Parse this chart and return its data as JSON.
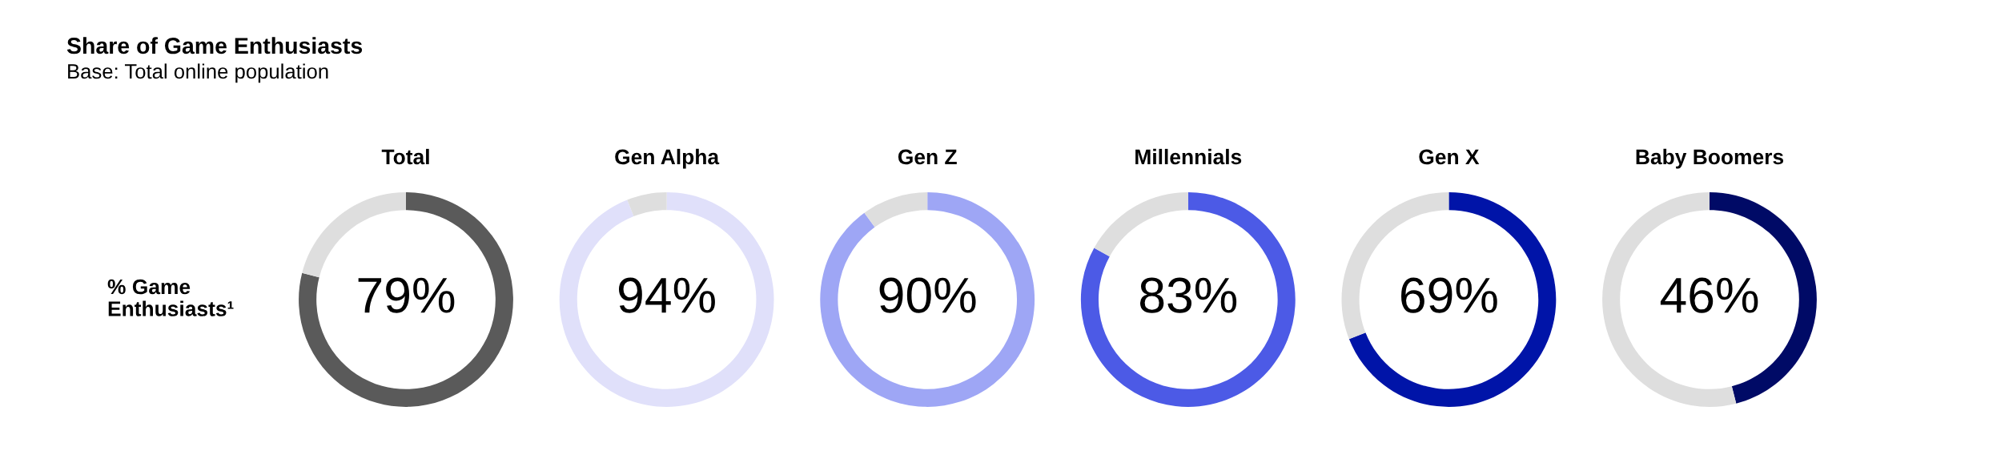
{
  "chart_data": [
    {
      "type": "other",
      "title": "Share of Game Enthusiasts",
      "subtitle": "Base: Total online population",
      "annotations": [
        "% Game Enthusiasts¹"
      ]
    },
    {
      "type": "donut",
      "title": "Total",
      "categories": [
        null,
        null
      ],
      "values": [
        79,
        21
      ],
      "colors": [
        "#5a5a5a",
        "#dedede"
      ],
      "value_labels": [
        "79%",
        null
      ]
    },
    {
      "type": "donut",
      "title": "Gen Alpha",
      "categories": [
        null,
        null
      ],
      "values": [
        94,
        6
      ],
      "colors": [
        "#e0e0fa",
        "#dedede"
      ],
      "value_labels": [
        "94%",
        null
      ]
    },
    {
      "type": "donut",
      "title": "Gen Z",
      "categories": [
        null,
        null
      ],
      "values": [
        90,
        10
      ],
      "colors": [
        "#9ea6f5",
        "#dedede"
      ],
      "value_labels": [
        "90%",
        null
      ]
    },
    {
      "type": "donut",
      "title": "Millennials",
      "categories": [
        null,
        null
      ],
      "values": [
        83,
        17
      ],
      "colors": [
        "#4c5ae6",
        "#dedede"
      ],
      "value_labels": [
        "83%",
        null
      ]
    },
    {
      "type": "donut",
      "title": "Gen X",
      "categories": [
        null,
        null
      ],
      "values": [
        69,
        31
      ],
      "colors": [
        "#0014a8",
        "#dedede"
      ],
      "value_labels": [
        "69%",
        null
      ]
    },
    {
      "type": "donut",
      "title": "Baby Boomers",
      "categories": [
        null,
        null
      ],
      "values": [
        46,
        54
      ],
      "colors": [
        "#000a66",
        "#dedede"
      ],
      "value_labels": [
        "46%",
        null
      ]
    }
  ]
}
